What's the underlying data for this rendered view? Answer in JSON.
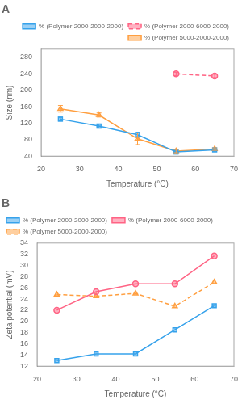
{
  "chart_data": [
    {
      "type": "line",
      "title": "A",
      "xlabel": "Temperature (°C)",
      "ylabel": "Size (nm)",
      "x": [
        25,
        35,
        45,
        55,
        65
      ],
      "xlim": [
        20,
        70
      ],
      "xticks": [
        20,
        30,
        40,
        50,
        60,
        70
      ],
      "ylim": [
        40,
        300
      ],
      "yticks": [
        40,
        80,
        120,
        160,
        200,
        240,
        280
      ],
      "grid": false,
      "legend": "upper right",
      "series": [
        {
          "name": "% (Polymer 2000-2000-2000)",
          "values": [
            130,
            113,
            92,
            50,
            55
          ],
          "errors": [
            5,
            5,
            6,
            5,
            3
          ],
          "marker": "square",
          "line_style": "solid"
        },
        {
          "name": "% (Polymer 2000-6000-2000)",
          "values": [
            null,
            null,
            null,
            240,
            235
          ],
          "errors": [
            null,
            null,
            null,
            4,
            4
          ],
          "marker": "circle",
          "line_style": "dashed"
        },
        {
          "name": "% (Polymer 5000-2000-2000)",
          "values": [
            155,
            140,
            82,
            52,
            57
          ],
          "errors": [
            8,
            5,
            14,
            4,
            3
          ],
          "marker": "triangle",
          "line_style": "solid"
        }
      ]
    },
    {
      "type": "line",
      "title": "B",
      "xlabel": "Temperature (°C)",
      "ylabel": "Zeta potential (mV)",
      "x": [
        25,
        35,
        45,
        55,
        65
      ],
      "xlim": [
        20,
        70
      ],
      "xticks": [
        20,
        30,
        40,
        50,
        60,
        70
      ],
      "ylim": [
        12,
        34
      ],
      "yticks": [
        12,
        14,
        16,
        18,
        20,
        22,
        24,
        26,
        28,
        30,
        32,
        34
      ],
      "grid": false,
      "legend": "upper left",
      "series": [
        {
          "name": "% (Polymer 2000-2000-2000)",
          "values": [
            13,
            14.2,
            14.2,
            18.5,
            22.8
          ],
          "marker": "square",
          "line_style": "solid"
        },
        {
          "name": "% (Polymer 2000-6000-2000)",
          "values": [
            22,
            25.3,
            26.7,
            26.7,
            31.7
          ],
          "marker": "circle",
          "line_style": "solid"
        },
        {
          "name": "% (Polymer 5000-2000-2000)",
          "values": [
            24.8,
            24.5,
            25,
            22.7,
            27
          ],
          "marker": "triangle",
          "line_style": "dashed"
        }
      ]
    }
  ]
}
